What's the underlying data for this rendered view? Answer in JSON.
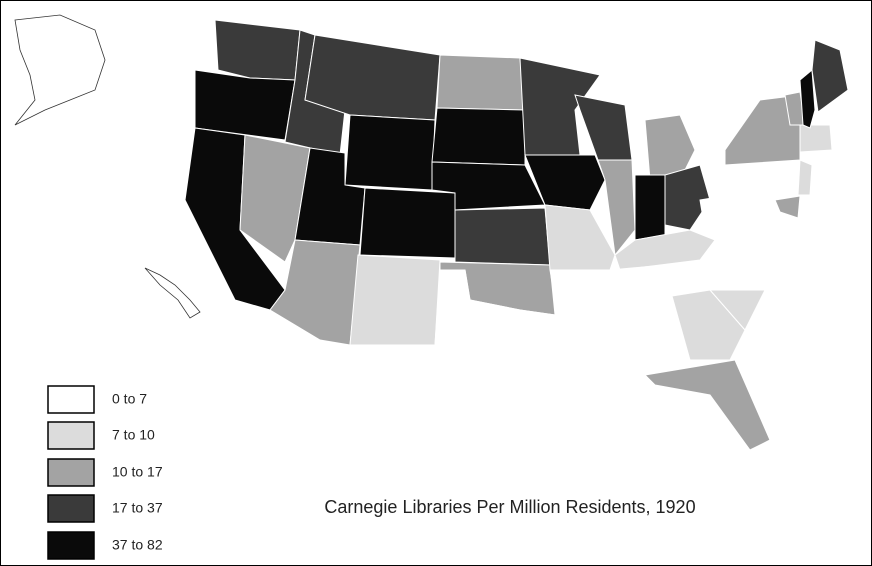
{
  "title": "Carnegie Libraries Per Million Residents, 1920",
  "legend": [
    {
      "label": "0 to 7",
      "color": "#ffffff"
    },
    {
      "label": "7 to 10",
      "color": "#dcdcdc"
    },
    {
      "label": "10 to 17",
      "color": "#a3a3a3"
    },
    {
      "label": "17 to 37",
      "color": "#3a3a3a"
    },
    {
      "label": "37 to 82",
      "color": "#0a0a0a"
    }
  ]
}
